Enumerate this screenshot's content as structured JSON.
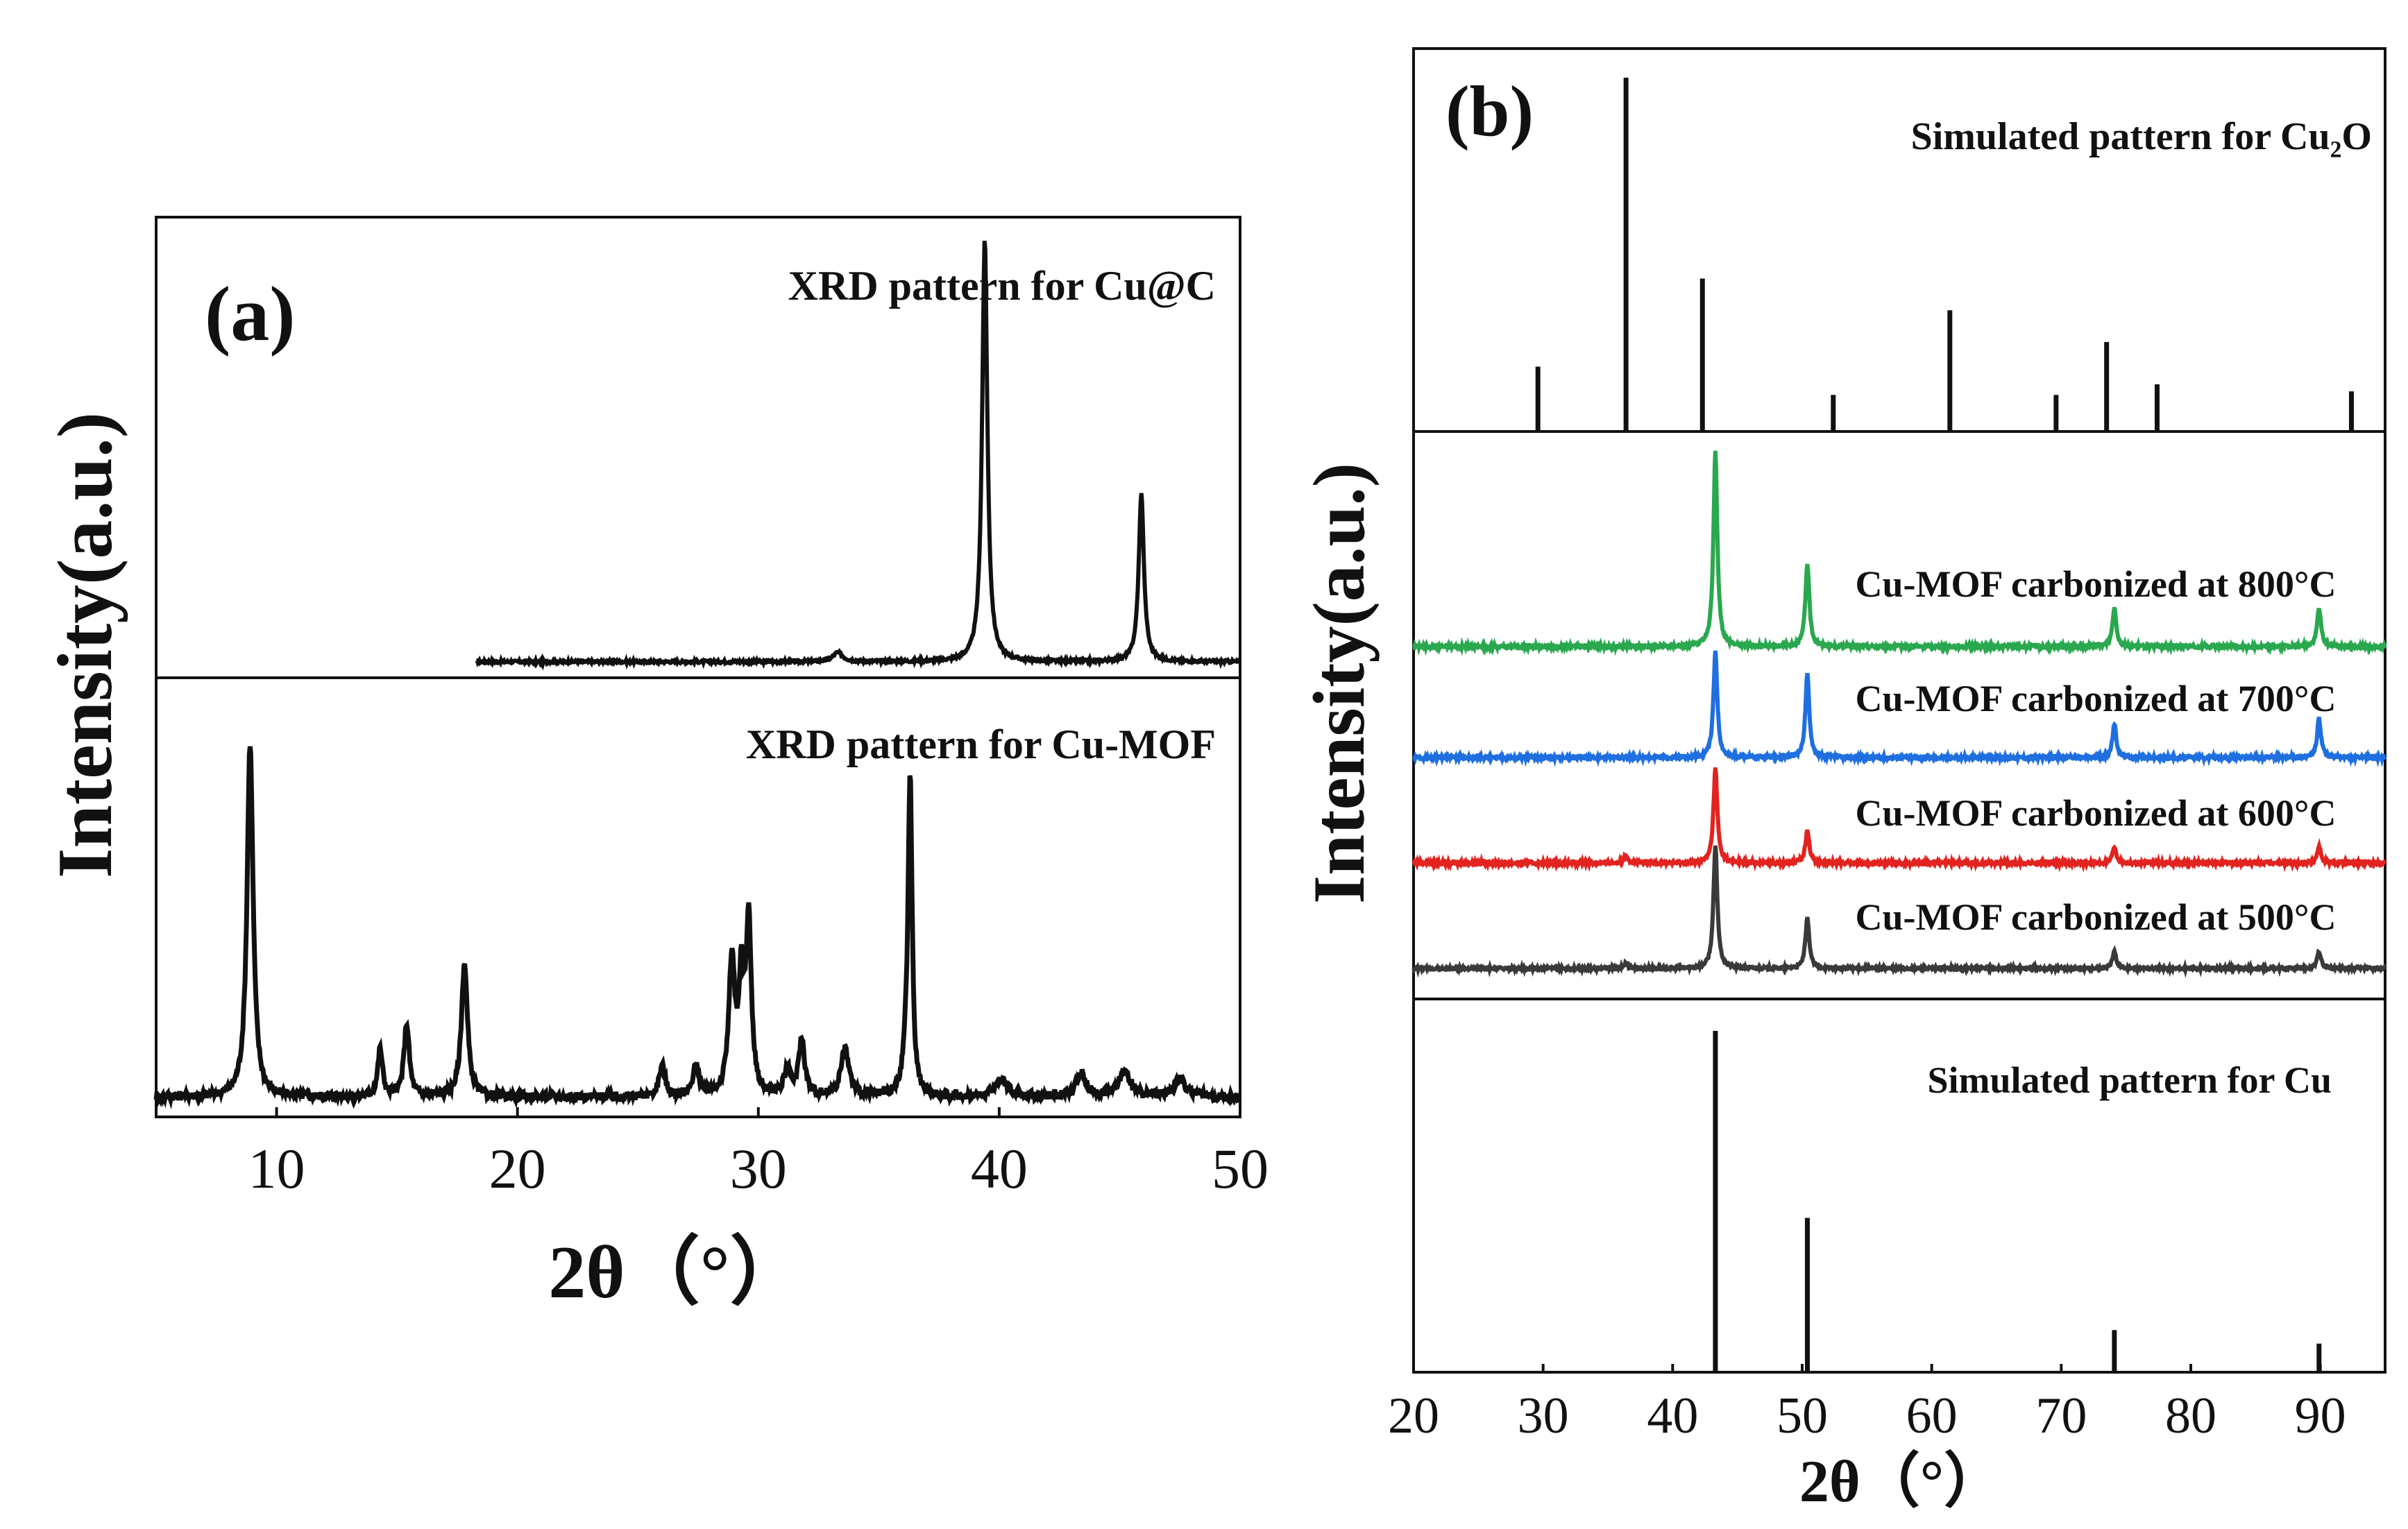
{
  "chart_data": [
    {
      "panel": "(a)",
      "type": "line",
      "xlabel": "2θ（°）",
      "ylabel": "Intensity(a.u.)",
      "xlim": [
        5,
        50
      ],
      "xticks": [
        "10",
        "20",
        "30",
        "40",
        "50"
      ],
      "series": [
        {
          "name": "XRD pattern for Cu@C",
          "x_range": [
            18.3,
            50
          ],
          "baseline": 0.02,
          "noise": 0.006,
          "peaks": [
            {
              "x": 33.3,
              "height": 0.02,
              "width": 0.25
            },
            {
              "x": 39.4,
              "height": 0.93,
              "width": 0.13
            },
            {
              "x": 45.9,
              "height": 0.37,
              "width": 0.13
            }
          ]
        },
        {
          "name": "XRD pattern for Cu-MOF",
          "x_range": [
            5,
            50
          ],
          "baseline": 0.03,
          "noise": 0.02,
          "peaks": [
            {
              "x": 8.9,
              "height": 0.82,
              "width": 0.15
            },
            {
              "x": 14.3,
              "height": 0.11,
              "width": 0.12
            },
            {
              "x": 15.4,
              "height": 0.17,
              "width": 0.13
            },
            {
              "x": 17.8,
              "height": 0.31,
              "width": 0.15
            },
            {
              "x": 26.0,
              "height": 0.07,
              "width": 0.15
            },
            {
              "x": 27.4,
              "height": 0.07,
              "width": 0.15
            },
            {
              "x": 28.9,
              "height": 0.31,
              "width": 0.15
            },
            {
              "x": 29.3,
              "height": 0.25,
              "width": 0.12
            },
            {
              "x": 29.6,
              "height": 0.4,
              "width": 0.13
            },
            {
              "x": 31.2,
              "height": 0.06,
              "width": 0.15
            },
            {
              "x": 31.8,
              "height": 0.13,
              "width": 0.15
            },
            {
              "x": 33.6,
              "height": 0.11,
              "width": 0.2
            },
            {
              "x": 36.1,
              "height": 0.06,
              "width": 0.12
            },
            {
              "x": 36.3,
              "height": 0.74,
              "width": 0.1
            },
            {
              "x": 40.1,
              "height": 0.04,
              "width": 0.3
            },
            {
              "x": 43.4,
              "height": 0.05,
              "width": 0.25
            },
            {
              "x": 45.2,
              "height": 0.06,
              "width": 0.3
            },
            {
              "x": 47.5,
              "height": 0.04,
              "width": 0.3
            }
          ]
        }
      ]
    },
    {
      "panel": "(b)",
      "type": "line",
      "xlabel": "2θ（°）",
      "ylabel": "Intensity(a.u.)",
      "xlim": [
        20,
        95
      ],
      "xticks": [
        "20",
        "30",
        "40",
        "50",
        "60",
        "70",
        "80",
        "90"
      ],
      "reference_top": {
        "name": "Simulated pattern for Cu₂O",
        "sticks": [
          {
            "x": 29.6,
            "height": 0.18
          },
          {
            "x": 36.4,
            "height": 1.0
          },
          {
            "x": 42.3,
            "height": 0.43
          },
          {
            "x": 52.4,
            "height": 0.1
          },
          {
            "x": 61.4,
            "height": 0.34
          },
          {
            "x": 69.6,
            "height": 0.1
          },
          {
            "x": 73.5,
            "height": 0.25
          },
          {
            "x": 77.4,
            "height": 0.13
          },
          {
            "x": 92.4,
            "height": 0.11
          }
        ]
      },
      "series": [
        {
          "name": "Cu-MOF carbonized at 800°C",
          "color": "#2aa84f",
          "offset": 0.61,
          "noise": 0.006,
          "peaks": [
            {
              "x": 43.3,
              "height": 0.35
            },
            {
              "x": 50.4,
              "height": 0.15
            },
            {
              "x": 74.1,
              "height": 0.07
            },
            {
              "x": 89.9,
              "height": 0.07
            }
          ]
        },
        {
          "name": "Cu-MOF carbonized at 700°C",
          "color": "#1f6fe0",
          "offset": 0.41,
          "noise": 0.006,
          "peaks": [
            {
              "x": 43.3,
              "height": 0.19
            },
            {
              "x": 50.4,
              "height": 0.15
            },
            {
              "x": 74.1,
              "height": 0.06
            },
            {
              "x": 89.9,
              "height": 0.07
            }
          ]
        },
        {
          "name": "Cu-MOF carbonized at 600°C",
          "color": "#e2231f",
          "offset": 0.22,
          "noise": 0.006,
          "peaks": [
            {
              "x": 36.4,
              "height": 0.015
            },
            {
              "x": 43.3,
              "height": 0.17
            },
            {
              "x": 50.4,
              "height": 0.06
            },
            {
              "x": 74.1,
              "height": 0.03
            },
            {
              "x": 89.9,
              "height": 0.03
            }
          ]
        },
        {
          "name": "Cu-MOF carbonized at 500°C",
          "color": "#3a3a3a",
          "offset": 0.03,
          "noise": 0.005,
          "peaks": [
            {
              "x": 36.4,
              "height": 0.01
            },
            {
              "x": 43.3,
              "height": 0.22
            },
            {
              "x": 50.4,
              "height": 0.09
            },
            {
              "x": 74.1,
              "height": 0.03
            },
            {
              "x": 89.9,
              "height": 0.03
            }
          ]
        }
      ],
      "reference_bottom": {
        "name": "Simulated pattern for Cu",
        "sticks": [
          {
            "x": 43.3,
            "height": 1.0
          },
          {
            "x": 50.4,
            "height": 0.45
          },
          {
            "x": 74.1,
            "height": 0.12
          },
          {
            "x": 89.9,
            "height": 0.08
          }
        ]
      }
    }
  ]
}
